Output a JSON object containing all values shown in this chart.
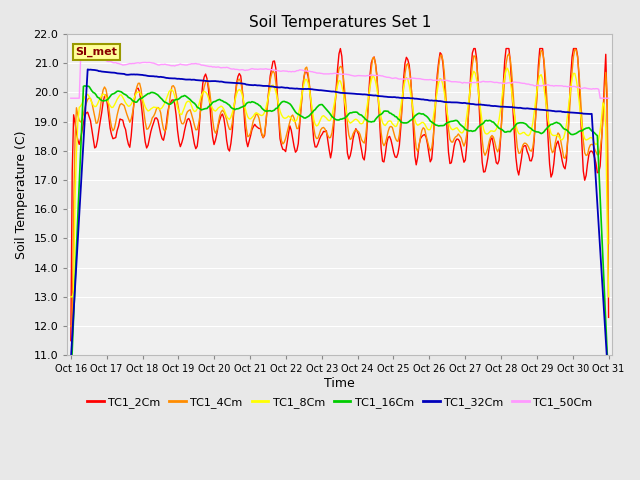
{
  "title": "Soil Temperatures Set 1",
  "xlabel": "Time",
  "ylabel": "Soil Temperature (C)",
  "ylim": [
    11.0,
    22.0
  ],
  "yticks": [
    11.0,
    12.0,
    13.0,
    14.0,
    15.0,
    16.0,
    17.0,
    18.0,
    19.0,
    20.0,
    21.0,
    22.0
  ],
  "xtick_labels": [
    "Oct 16",
    "Oct 17",
    "Oct 18",
    "Oct 19",
    "Oct 20",
    "Oct 21",
    "Oct 22",
    "Oct 23",
    "Oct 24",
    "Oct 25",
    "Oct 26",
    "Oct 27",
    "Oct 28",
    "Oct 29",
    "Oct 30",
    "Oct 31"
  ],
  "series_names": [
    "TC1_2Cm",
    "TC1_4Cm",
    "TC1_8Cm",
    "TC1_16Cm",
    "TC1_32Cm",
    "TC1_50Cm"
  ],
  "series_colors": [
    "#FF0000",
    "#FF8C00",
    "#FFFF00",
    "#00CC00",
    "#0000BB",
    "#FF99FF"
  ],
  "legend_label": "SI_met",
  "legend_bg": "#FFFF99",
  "legend_border": "#999900",
  "bg_color": "#E8E8E8",
  "plot_bg": "#F0F0F0",
  "grid_color": "#FFFFFF"
}
